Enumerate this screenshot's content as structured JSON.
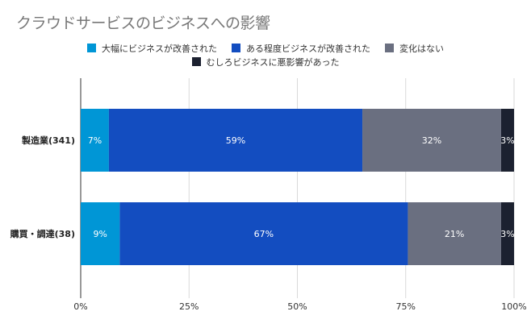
{
  "chart_data": {
    "type": "bar",
    "orientation": "horizontal",
    "stacked": true,
    "percent": true,
    "title": "クラウドサービスのビジネスへの影響",
    "categories": [
      "製造業(341)",
      "購買・調達(38)"
    ],
    "series": [
      {
        "name": "大幅にビジネスが改善された",
        "color": "#0096d6",
        "values": [
          6.5,
          9
        ],
        "labels": [
          "7%",
          "9%"
        ]
      },
      {
        "name": "ある程度ビジネスが改善された",
        "color": "#134dc0",
        "values": [
          58.5,
          66.5
        ],
        "labels": [
          "59%",
          "67%"
        ]
      },
      {
        "name": "変化はない",
        "color": "#6a6f80",
        "values": [
          32,
          21.5
        ],
        "labels": [
          "32%",
          "21%"
        ]
      },
      {
        "name": "むしろビジネスに悪影響があった",
        "color": "#1c2130",
        "values": [
          3,
          3
        ],
        "labels": [
          "3%",
          "3%"
        ]
      }
    ],
    "xlim": [
      0,
      100
    ],
    "xticks": [
      "0%",
      "25%",
      "50%",
      "75%",
      "100%"
    ],
    "xtick_values": [
      0,
      25,
      50,
      75,
      100
    ],
    "legend_position": "top",
    "grid": true
  }
}
